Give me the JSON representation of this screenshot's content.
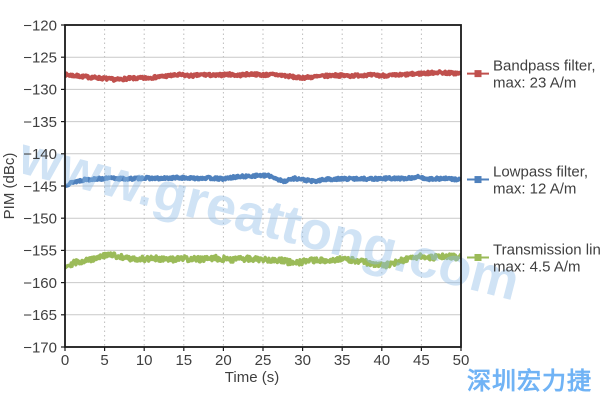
{
  "page": {
    "background": "#ffffff"
  },
  "watermark": {
    "text": "www.greattong.com",
    "color": "#8FBCE6"
  },
  "footer": {
    "text": "深圳宏力捷",
    "color": "#70B3F5"
  },
  "chart_data": {
    "type": "line",
    "title": "",
    "xlabel": "Time (s)",
    "ylabel": "PIM (dBc)",
    "xlim": [
      0,
      50
    ],
    "ylim": [
      -170,
      -120
    ],
    "xticks": [
      0,
      5,
      10,
      15,
      20,
      25,
      30,
      35,
      40,
      45,
      50
    ],
    "xtick_labels": [
      "0",
      "5",
      "10",
      "15",
      "20",
      "25",
      "30",
      "35",
      "40",
      "45",
      "50"
    ],
    "yticks": [
      -120,
      -125,
      -130,
      -135,
      -140,
      -145,
      -150,
      -155,
      -160,
      -165,
      -170
    ],
    "ytick_labels": [
      "−120",
      "−125",
      "−130",
      "−135",
      "−140",
      "−145",
      "−150",
      "−155",
      "−160",
      "−165",
      "−170"
    ],
    "grid": {
      "horizontal": "solid",
      "vertical": "dotted",
      "h_color": "#C9C9C9",
      "v_color": "#BDBDBD"
    },
    "axis_color": "#1A1A1A",
    "text_color": "#3F3F3F",
    "legend_position": "right",
    "series": [
      {
        "name": "Bandpass filter",
        "legend": [
          "Bandpass filter,",
          "max: 23 A/m"
        ],
        "max": "23 A/m",
        "color": "#C0504D",
        "noise_db": 0.22,
        "points": [
          [
            0,
            -127.7
          ],
          [
            1.5,
            -127.9
          ],
          [
            3,
            -128.1
          ],
          [
            5,
            -128.3
          ],
          [
            6.5,
            -128.5
          ],
          [
            8,
            -128.3
          ],
          [
            10,
            -128.25
          ],
          [
            11.5,
            -128.1
          ],
          [
            13,
            -127.9
          ],
          [
            14.5,
            -127.75
          ],
          [
            16,
            -127.9
          ],
          [
            17.5,
            -127.7
          ],
          [
            19,
            -127.85
          ],
          [
            20.5,
            -127.65
          ],
          [
            22,
            -127.8
          ],
          [
            23.5,
            -127.6
          ],
          [
            25,
            -127.75
          ],
          [
            26.5,
            -127.7
          ],
          [
            28,
            -127.9
          ],
          [
            29.5,
            -128.2
          ],
          [
            31,
            -128.1
          ],
          [
            32.5,
            -127.95
          ],
          [
            34,
            -127.8
          ],
          [
            36,
            -127.9
          ],
          [
            38,
            -127.75
          ],
          [
            40,
            -127.85
          ],
          [
            42,
            -127.8
          ],
          [
            44,
            -127.6
          ],
          [
            45.5,
            -127.5
          ],
          [
            47,
            -127.35
          ],
          [
            48.5,
            -127.45
          ],
          [
            50,
            -127.55
          ]
        ]
      },
      {
        "name": "Lowpass filter",
        "legend": [
          "Lowpass filter,",
          "max: 12 A/m"
        ],
        "max": "12 A/m",
        "color": "#4F81BD",
        "noise_db": 0.2,
        "points": [
          [
            0,
            -144.9
          ],
          [
            1,
            -144.4
          ],
          [
            2.5,
            -144.0
          ],
          [
            4,
            -143.9
          ],
          [
            6,
            -143.8
          ],
          [
            8,
            -143.9
          ],
          [
            10,
            -143.75
          ],
          [
            12,
            -143.85
          ],
          [
            14,
            -143.7
          ],
          [
            16,
            -143.8
          ],
          [
            18,
            -143.75
          ],
          [
            20,
            -143.9
          ],
          [
            21.5,
            -143.6
          ],
          [
            23,
            -143.5
          ],
          [
            24.5,
            -143.35
          ],
          [
            26,
            -143.45
          ],
          [
            27.5,
            -144.3
          ],
          [
            29,
            -143.8
          ],
          [
            30.5,
            -144.1
          ],
          [
            31.5,
            -144.3
          ],
          [
            33,
            -143.95
          ],
          [
            35,
            -143.9
          ],
          [
            37,
            -143.85
          ],
          [
            39,
            -143.9
          ],
          [
            41,
            -143.8
          ],
          [
            43,
            -143.85
          ],
          [
            44.5,
            -143.6
          ],
          [
            46,
            -143.9
          ],
          [
            48,
            -143.85
          ],
          [
            50,
            -144.0
          ]
        ]
      },
      {
        "name": "Transmission line",
        "legend": [
          "Transmission line,",
          "max: 4.5 A/m"
        ],
        "max": "4.5 A/m",
        "color": "#9BBB59",
        "noise_db": 0.42,
        "points": [
          [
            0,
            -157.4
          ],
          [
            1.5,
            -156.8
          ],
          [
            3,
            -156.5
          ],
          [
            4.5,
            -155.9
          ],
          [
            6,
            -155.7
          ],
          [
            7.5,
            -156.2
          ],
          [
            9,
            -156.4
          ],
          [
            11,
            -156.2
          ],
          [
            13,
            -156.5
          ],
          [
            15,
            -156.3
          ],
          [
            17,
            -156.4
          ],
          [
            19,
            -156.2
          ],
          [
            21,
            -156.4
          ],
          [
            23,
            -156.3
          ],
          [
            25,
            -156.4
          ],
          [
            27,
            -156.5
          ],
          [
            29,
            -157.0
          ],
          [
            31,
            -156.6
          ],
          [
            33,
            -156.5
          ],
          [
            35,
            -156.4
          ],
          [
            37,
            -156.6
          ],
          [
            39,
            -157.1
          ],
          [
            40.5,
            -157.3
          ],
          [
            42,
            -156.8
          ],
          [
            43.5,
            -156.2
          ],
          [
            45,
            -155.9
          ],
          [
            46.5,
            -156.1
          ],
          [
            48,
            -155.9
          ],
          [
            50,
            -156.1
          ]
        ]
      }
    ]
  }
}
